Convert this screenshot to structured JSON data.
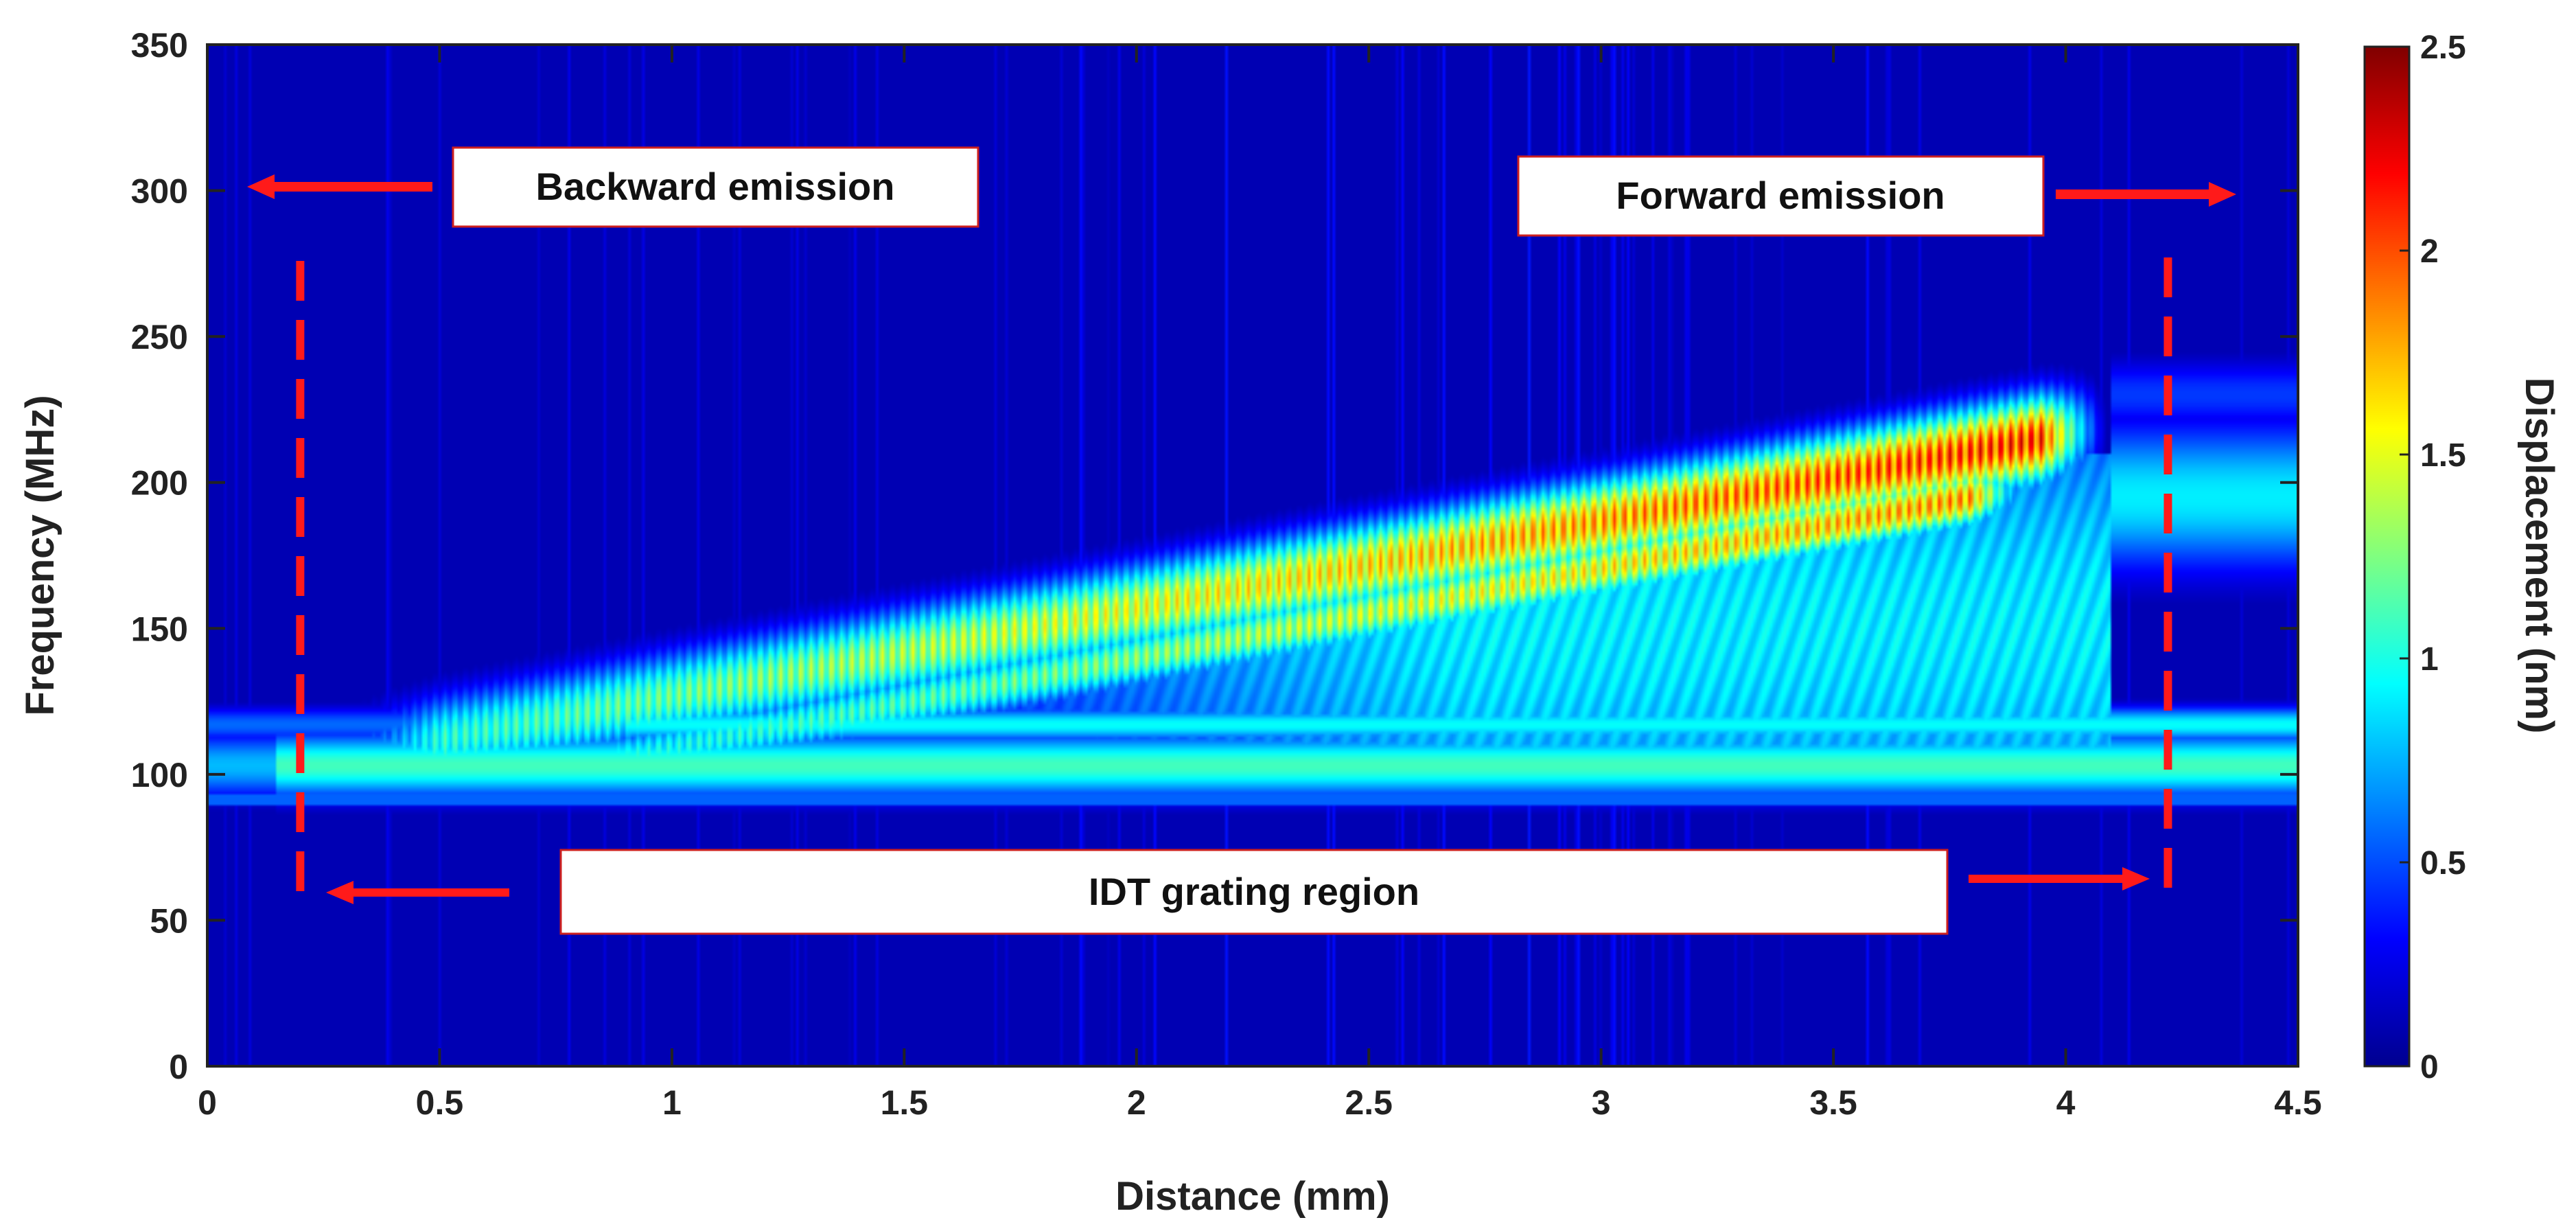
{
  "chart_data": {
    "type": "heatmap",
    "title": "",
    "xlabel": "Distance (mm)",
    "ylabel": "Frequency (MHz)",
    "xlim": [
      0,
      4.5
    ],
    "ylim": [
      0,
      350
    ],
    "xticks": [
      "0",
      "0.5",
      "1",
      "1.5",
      "2",
      "2.5",
      "3",
      "3.5",
      "4",
      "4.5"
    ],
    "yticks": [
      "0",
      "50",
      "100",
      "150",
      "200",
      "250",
      "300",
      "350"
    ],
    "colorbar": {
      "label": "Displacement (nm)",
      "range": [
        0,
        2.5
      ],
      "ticks": [
        "0",
        "0.5",
        "1",
        "1.5",
        "2",
        "2.5"
      ],
      "colormap": "jet"
    },
    "grid": false,
    "background_level": 0.1,
    "bands": [
      {
        "description_label": "constant band",
        "x_start": 0.0,
        "x_end": 4.5,
        "f_start": 103,
        "f_end": 103,
        "width_mhz": 11,
        "peak": 1.1
      },
      {
        "description_label": "upper ramp",
        "x_start": 0.2,
        "x_end": 4.05,
        "f_start": 103,
        "f_end": 218,
        "width_mhz": 15,
        "peak": 2.4
      },
      {
        "description_label": "lower ramp",
        "x_start": 0.6,
        "x_end": 3.9,
        "f_start": 97,
        "f_end": 198,
        "width_mhz": 10,
        "peak": 2.1
      }
    ],
    "colormap_stops": [
      {
        "v": 0.0,
        "color": "#00008f"
      },
      {
        "v": 0.125,
        "color": "#0000ff"
      },
      {
        "v": 0.375,
        "color": "#00ffff"
      },
      {
        "v": 0.625,
        "color": "#ffff00"
      },
      {
        "v": 0.875,
        "color": "#ff0000"
      },
      {
        "v": 1.0,
        "color": "#800000"
      }
    ],
    "annotations": [
      {
        "id": "backward",
        "text": "Backward emission",
        "arrow": "left",
        "x": 0.2
      },
      {
        "id": "forward",
        "text": "Forward emission",
        "arrow": "right",
        "x": 4.22
      },
      {
        "id": "idt",
        "text": "IDT grating region",
        "arrow": "both",
        "x_start": 0.2,
        "x_end": 4.22
      }
    ],
    "marker_color": "#ff1a1a"
  }
}
